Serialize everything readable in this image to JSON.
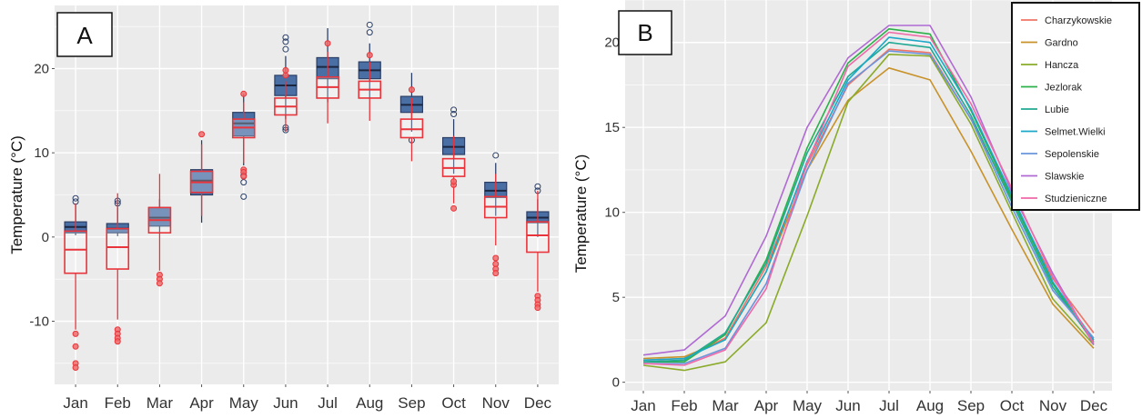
{
  "panels": {
    "a_label": "A",
    "b_label": "B"
  },
  "colors": {
    "panel_bg": "#ebebeb",
    "grid": "#ffffff",
    "box_fill": "#4a6fa5",
    "box_stroke": "#2b3f66",
    "red": "#e8343a",
    "red_outlier": "#ef6a6a"
  },
  "chart_data": [
    {
      "type": "box",
      "panel": "A",
      "ylabel": "Temperature  (°C)",
      "xlabel": "",
      "categories": [
        "Jan",
        "Feb",
        "Mar",
        "Apr",
        "May",
        "Jun",
        "Jul",
        "Aug",
        "Sep",
        "Oct",
        "Nov",
        "Dec"
      ],
      "ylim": [
        -17.5,
        27.5
      ],
      "yticks": [
        -10,
        0,
        10,
        20
      ],
      "grid": true,
      "series": [
        {
          "color": "#4a6fa5",
          "boxes": [
            {
              "q1": 0.5,
              "median": 1.2,
              "q3": 1.8,
              "lo": 0.2,
              "hi": 3.8,
              "outliers": [
                4.2,
                4.6
              ]
            },
            {
              "q1": 0.5,
              "median": 1.0,
              "q3": 1.6,
              "lo": 0.1,
              "hi": 3.5,
              "outliers": [
                4.0,
                4.3
              ]
            },
            {
              "q1": 1.3,
              "median": 2.3,
              "q3": 3.5,
              "lo": 0.5,
              "hi": 4.5,
              "outliers": []
            },
            {
              "q1": 5.0,
              "median": 6.7,
              "q3": 8.0,
              "lo": 1.7,
              "hi": 11.5,
              "outliers": []
            },
            {
              "q1": 12.0,
              "median": 13.5,
              "q3": 14.8,
              "lo": 8.5,
              "hi": 17.0,
              "outliers": [
                7.3,
                6.5,
                4.8
              ]
            },
            {
              "q1": 16.8,
              "median": 18.0,
              "q3": 19.2,
              "lo": 14.0,
              "hi": 21.5,
              "outliers": [
                13.0,
                12.7,
                22.3,
                23.2,
                23.7
              ]
            },
            {
              "q1": 18.8,
              "median": 20.2,
              "q3": 21.3,
              "lo": 16.0,
              "hi": 24.8,
              "outliers": []
            },
            {
              "q1": 18.8,
              "median": 19.8,
              "q3": 20.8,
              "lo": 16.5,
              "hi": 23.0,
              "outliers": [
                24.3,
                25.2
              ]
            },
            {
              "q1": 14.8,
              "median": 15.7,
              "q3": 16.7,
              "lo": 12.5,
              "hi": 19.5,
              "outliers": [
                11.5
              ]
            },
            {
              "q1": 9.8,
              "median": 10.7,
              "q3": 11.8,
              "lo": 7.5,
              "hi": 14.0,
              "outliers": [
                14.6,
                15.1
              ]
            },
            {
              "q1": 4.7,
              "median": 5.5,
              "q3": 6.5,
              "lo": 2.5,
              "hi": 8.8,
              "outliers": [
                9.7
              ]
            },
            {
              "q1": 1.7,
              "median": 2.3,
              "q3": 3.0,
              "lo": 0.0,
              "hi": 4.5,
              "outliers": [
                5.5,
                6.0
              ]
            }
          ]
        },
        {
          "color": "#e8343a",
          "boxes": [
            {
              "q1": -4.3,
              "median": -1.5,
              "q3": 0.7,
              "lo": -11.0,
              "hi": 4.0,
              "outliers": [
                -11.5,
                -13.0,
                -15.0,
                -15.5
              ]
            },
            {
              "q1": -3.8,
              "median": -1.2,
              "q3": 1.0,
              "lo": -9.8,
              "hi": 5.2,
              "outliers": [
                -11.0,
                -11.5,
                -12.0,
                -12.4
              ]
            },
            {
              "q1": 0.5,
              "median": 2.0,
              "q3": 3.5,
              "lo": -4.0,
              "hi": 7.5,
              "outliers": [
                -4.5,
                -5.0,
                -5.5
              ]
            },
            {
              "q1": 5.3,
              "median": 6.5,
              "q3": 7.8,
              "lo": 2.5,
              "hi": 11.0,
              "outliers": [
                12.2
              ]
            },
            {
              "q1": 11.8,
              "median": 13.0,
              "q3": 14.0,
              "lo": 8.8,
              "hi": 16.0,
              "outliers": [
                8.0,
                7.7,
                7.2,
                17.0
              ]
            },
            {
              "q1": 14.5,
              "median": 15.5,
              "q3": 16.5,
              "lo": 12.5,
              "hi": 18.5,
              "outliers": [
                19.2,
                19.8
              ]
            },
            {
              "q1": 16.5,
              "median": 17.8,
              "q3": 19.0,
              "lo": 13.5,
              "hi": 22.0,
              "outliers": [
                23.0
              ]
            },
            {
              "q1": 16.5,
              "median": 17.5,
              "q3": 18.5,
              "lo": 13.8,
              "hi": 20.8,
              "outliers": [
                21.6
              ]
            },
            {
              "q1": 11.8,
              "median": 12.8,
              "q3": 14.0,
              "lo": 9.0,
              "hi": 16.5,
              "outliers": [
                17.5
              ]
            },
            {
              "q1": 7.2,
              "median": 8.2,
              "q3": 9.3,
              "lo": 4.0,
              "hi": 12.0,
              "outliers": [
                3.4,
                6.2,
                6.6
              ]
            },
            {
              "q1": 2.3,
              "median": 3.6,
              "q3": 4.8,
              "lo": -1.0,
              "hi": 7.5,
              "outliers": [
                -2.5,
                -3.2,
                -3.8,
                -4.3
              ]
            },
            {
              "q1": -1.8,
              "median": 0.2,
              "q3": 1.8,
              "lo": -6.5,
              "hi": 5.5,
              "outliers": [
                -7.0,
                -7.5,
                -8.0,
                -8.4
              ]
            }
          ]
        }
      ]
    },
    {
      "type": "line",
      "panel": "B",
      "ylabel": "Temperature  (°C)",
      "xlabel": "",
      "categories": [
        "Jan",
        "Feb",
        "Mar",
        "Apr",
        "May",
        "Jun",
        "Jul",
        "Aug",
        "Sep",
        "Oct",
        "Nov",
        "Dec"
      ],
      "ylim": [
        -0.5,
        22.5
      ],
      "yticks": [
        0,
        5,
        10,
        15,
        20
      ],
      "grid": true,
      "legend_position": "top-right",
      "series": [
        {
          "name": "Charzykowskie",
          "color": "#f07466",
          "values": [
            1.3,
            1.4,
            2.6,
            6.8,
            12.8,
            17.5,
            19.6,
            19.4,
            15.5,
            10.8,
            6.1,
            2.9
          ]
        },
        {
          "name": "Gardno",
          "color": "#c8922a",
          "values": [
            1.4,
            1.5,
            2.5,
            6.5,
            12.5,
            16.6,
            18.5,
            17.8,
            13.6,
            9.0,
            4.6,
            2.0
          ]
        },
        {
          "name": "Hancza",
          "color": "#8aab29",
          "values": [
            1.0,
            0.7,
            1.2,
            3.5,
            9.8,
            16.5,
            19.3,
            19.2,
            15.2,
            10.0,
            4.9,
            2.2
          ]
        },
        {
          "name": "Jezlorak",
          "color": "#2bb04a",
          "values": [
            1.2,
            1.2,
            2.8,
            7.2,
            13.8,
            18.8,
            20.8,
            20.5,
            16.0,
            10.8,
            5.8,
            2.3
          ]
        },
        {
          "name": "Lubie",
          "color": "#21a994",
          "values": [
            1.2,
            1.3,
            2.9,
            7.0,
            13.5,
            18.0,
            20.0,
            19.7,
            15.7,
            10.6,
            5.6,
            2.4
          ]
        },
        {
          "name": "Selmet.Wielki",
          "color": "#1ca8c8",
          "values": [
            1.3,
            1.4,
            2.5,
            6.5,
            13.0,
            17.8,
            20.3,
            20.0,
            16.1,
            11.0,
            5.9,
            2.5
          ]
        },
        {
          "name": "Sepolenskie",
          "color": "#6a94dc",
          "values": [
            1.1,
            1.1,
            2.0,
            5.8,
            12.5,
            17.6,
            19.5,
            19.3,
            15.5,
            10.3,
            5.4,
            2.6
          ]
        },
        {
          "name": "Slawskie",
          "color": "#b06ad4",
          "values": [
            1.6,
            1.9,
            3.9,
            8.6,
            15.0,
            19.1,
            21.0,
            21.0,
            16.8,
            11.2,
            6.4,
            2.2
          ]
        },
        {
          "name": "Studzieniczne",
          "color": "#ee6aa8",
          "values": [
            1.1,
            1.0,
            1.9,
            5.5,
            12.9,
            18.6,
            20.6,
            20.3,
            16.4,
            11.4,
            6.2,
            2.3
          ]
        }
      ]
    }
  ]
}
